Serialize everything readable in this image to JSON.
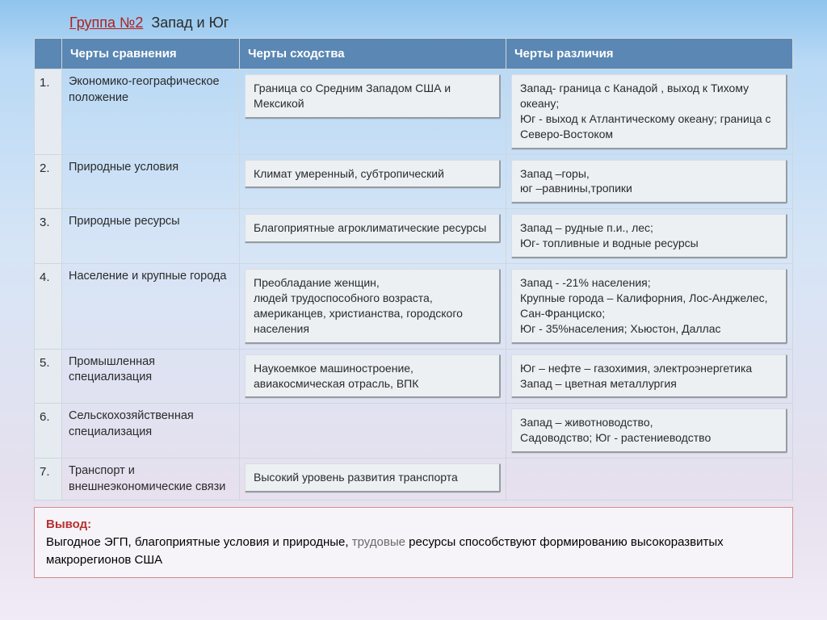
{
  "title": {
    "group": "Группа №2",
    "topic": "Запад и Юг"
  },
  "headers": {
    "col1": "Черты  сравнения",
    "col2": "Черты  сходства",
    "col3": "Черты различия"
  },
  "rows": [
    {
      "n": "1.",
      "feature": "Экономико-географическое положение",
      "sim": "Граница со Средним Западом  США и Мексикой",
      "diff": "Запад- граница с Канадой , выход к Тихому океану;\nЮг - выход к Атлантическому океану; граница с Северо-Востоком"
    },
    {
      "n": "2.",
      "feature": "Природные условия",
      "sim": "Климат умеренный, субтропический",
      "diff": "Запад –горы,\nюг –равнины,тропики"
    },
    {
      "n": "3.",
      "feature": "Природные ресурсы",
      "sim": "Благоприятные агроклиматические ресурсы",
      "diff": "Запад –  рудные п.и., лес;\nЮг- топливные и  водные ресурсы"
    },
    {
      "n": "4.",
      "feature": "Население и крупные города",
      "sim": "Преобладание женщин,\nлюдей трудоспособного возраста, американцев, христианства, городского населения",
      "diff": "Запад -  -21% населения;\nКрупные города – Калифорния, Лос-Анджелес, Сан-Франциско;\n Юг -  35%населения;  Хьюстон, Даллас"
    },
    {
      "n": "5.",
      "feature": "Промышленная специализация",
      "sim": "Наукоемкое машиностроение, авиакосмическая отрасль, ВПК",
      "diff": "Юг – нефте – газохимия, электроэнергетика\nЗапад – цветная металлургия"
    },
    {
      "n": "6.",
      "feature": "Сельскохозяйственная специализация",
      "sim": "",
      "diff": "Запад – животноводство,\nСадоводство; Юг - растениеводство"
    },
    {
      "n": "7.",
      "feature": "Транспорт и внешнеэкономические связи",
      "sim": "Высокий уровень развития транспорта",
      "diff": ""
    }
  ],
  "conclusion": {
    "lead": "Вывод:",
    "pre": "Выгодное ЭГП, благоприятные условия и природные, ",
    "mid": "трудовые",
    "post": " ресурсы способствуют формированию высокоразвитых макрорегионов США"
  },
  "colors": {
    "header_bg": "#5a87b3",
    "header_fg": "#ffffff",
    "grid": "#cdd7de",
    "numcol_bg": "#e5ebf1",
    "chip_bg": "#edf0f3",
    "conclusion_border": "#d58a8a"
  }
}
